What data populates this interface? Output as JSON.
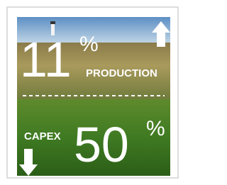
{
  "top": {
    "value": "11",
    "unit": "%",
    "label": "PRODUCTION"
  },
  "bottom": {
    "value": "50",
    "unit": "%",
    "label": "CAPEX"
  }
}
